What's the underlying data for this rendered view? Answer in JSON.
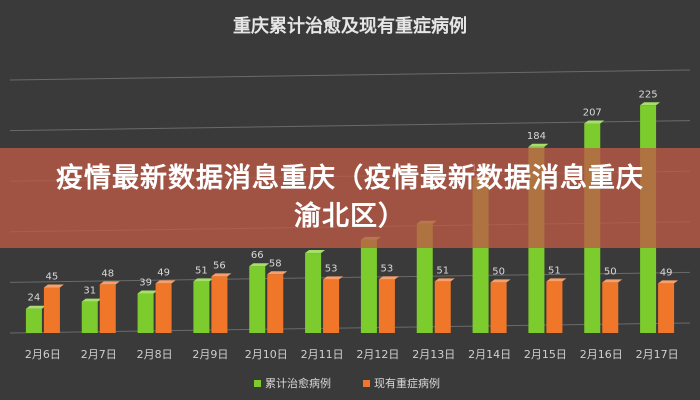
{
  "banner": {
    "text": "疫情最新数据消息重庆（疫情最新数据消息重庆渝北区）"
  },
  "colors": {
    "background": "#3a3a3a",
    "series1": "#7ccc2e",
    "series2": "#f0772a",
    "banner": "#be5a46"
  },
  "chart_data": {
    "type": "bar",
    "title": "重庆累计治愈及现有重症病例",
    "categories": [
      "2月6日",
      "2月7日",
      "2月8日",
      "2月9日",
      "2月10日",
      "2月11日",
      "2月12日",
      "2月13日",
      "2月14日",
      "2月15日",
      "2月16日",
      "2月17日"
    ],
    "series": [
      {
        "name": "累计治愈病例",
        "values": [
          24,
          31,
          39,
          51,
          66,
          79,
          92,
          108,
          152,
          184,
          207,
          225
        ]
      },
      {
        "name": "现有重症病例",
        "values": [
          45,
          48,
          49,
          56,
          58,
          53,
          53,
          51,
          50,
          51,
          50,
          49
        ]
      }
    ],
    "visible_value_labels": [
      [
        "24",
        "31",
        "39",
        "51",
        "66",
        "",
        "",
        "",
        "152",
        "184",
        "207",
        "225"
      ],
      [
        "45",
        "48",
        "49",
        "56",
        "58",
        "53",
        "53",
        "51",
        "50",
        "51",
        "50",
        "49"
      ]
    ],
    "ylim": [
      0,
      250
    ],
    "grid": true,
    "legend": "bottom"
  }
}
